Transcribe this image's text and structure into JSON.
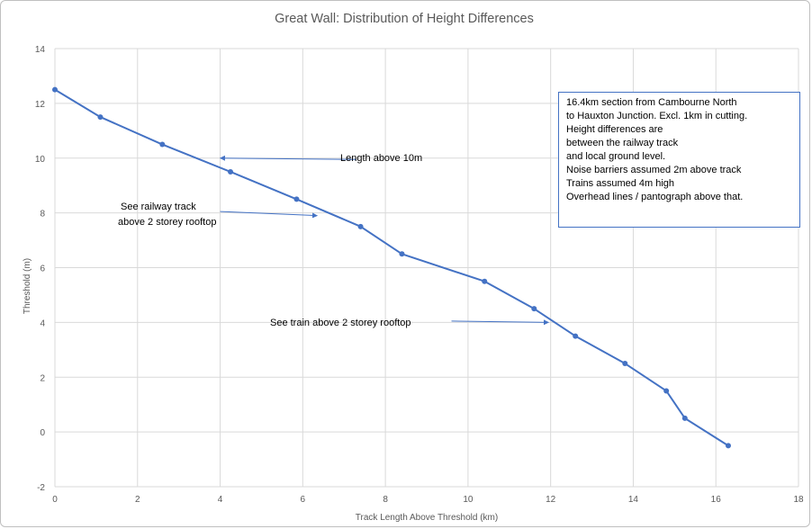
{
  "chart_data": {
    "type": "line",
    "title": "Great Wall: Distribution of Height Differences",
    "xlabel": "Track Length Above Threshold (km)",
    "ylabel": "Threshold (m)",
    "xlim": [
      0,
      18
    ],
    "ylim": [
      -2,
      14
    ],
    "xticks": [
      "0",
      "2",
      "4",
      "6",
      "8",
      "10",
      "12",
      "14",
      "16",
      "18"
    ],
    "yticks": [
      "-2",
      "0",
      "2",
      "4",
      "6",
      "8",
      "10",
      "12",
      "14"
    ],
    "grid": "vertical and horizontal",
    "series": [
      {
        "color": "#4472c4",
        "x": [
          0,
          1.1,
          2.6,
          4.25,
          5.85,
          7.4,
          8.4,
          10.4,
          11.6,
          12.6,
          13.8,
          14.8,
          15.25,
          16.3
        ],
        "y": [
          12.5,
          11.5,
          10.5,
          9.5,
          8.5,
          7.5,
          6.5,
          5.5,
          4.5,
          3.5,
          2.5,
          1.5,
          0.5,
          -0.5
        ]
      }
    ],
    "annotations": [
      {
        "text": "Length above 10m",
        "arrow_from": [
          7.3,
          9.95
        ],
        "arrow_to": [
          4.0,
          10.0
        ]
      },
      {
        "text": [
          "See railway track",
          "above 2 storey rooftop"
        ],
        "arrow_from": [
          4.0,
          8.05
        ],
        "arrow_to": [
          6.35,
          7.9
        ]
      },
      {
        "text": "See train above 2 storey rooftop",
        "arrow_from": [
          9.6,
          4.05
        ],
        "arrow_to": [
          11.95,
          4.0
        ]
      }
    ],
    "text_box": {
      "lines": [
        "16.4km section from Cambourne North",
        "to Hauxton Junction. Excl. 1km in cutting.",
        "Height differences are",
        "between the railway track",
        "and local ground level.",
        "Noise barriers assumed 2m above track",
        "Trains assumed 4m high",
        "Overhead lines / pantograph above that."
      ]
    }
  }
}
